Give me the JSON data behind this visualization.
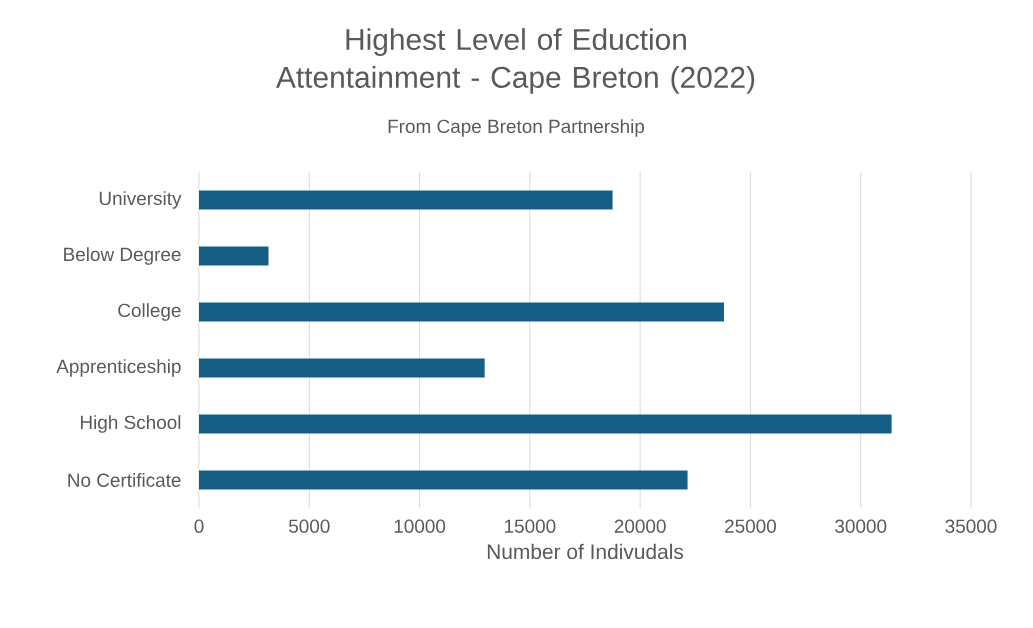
{
  "chart_data": {
    "type": "bar",
    "orientation": "horizontal",
    "title": "Highest Level of Eduction Attentainment - Cape Breton (2022)",
    "subtitle": "From Cape Breton Partnership",
    "xlabel": "Number of Indivudals",
    "categories": [
      "University",
      "Below Degree",
      "College",
      "Apprenticeship",
      "High School",
      "No Certificate"
    ],
    "values": [
      18750,
      3150,
      23800,
      12950,
      31400,
      22150
    ],
    "color": "#165e83",
    "xlim": [
      0,
      35000
    ],
    "xticks": [
      0,
      5000,
      10000,
      15000,
      20000,
      25000,
      30000,
      35000
    ],
    "grid": "x"
  }
}
